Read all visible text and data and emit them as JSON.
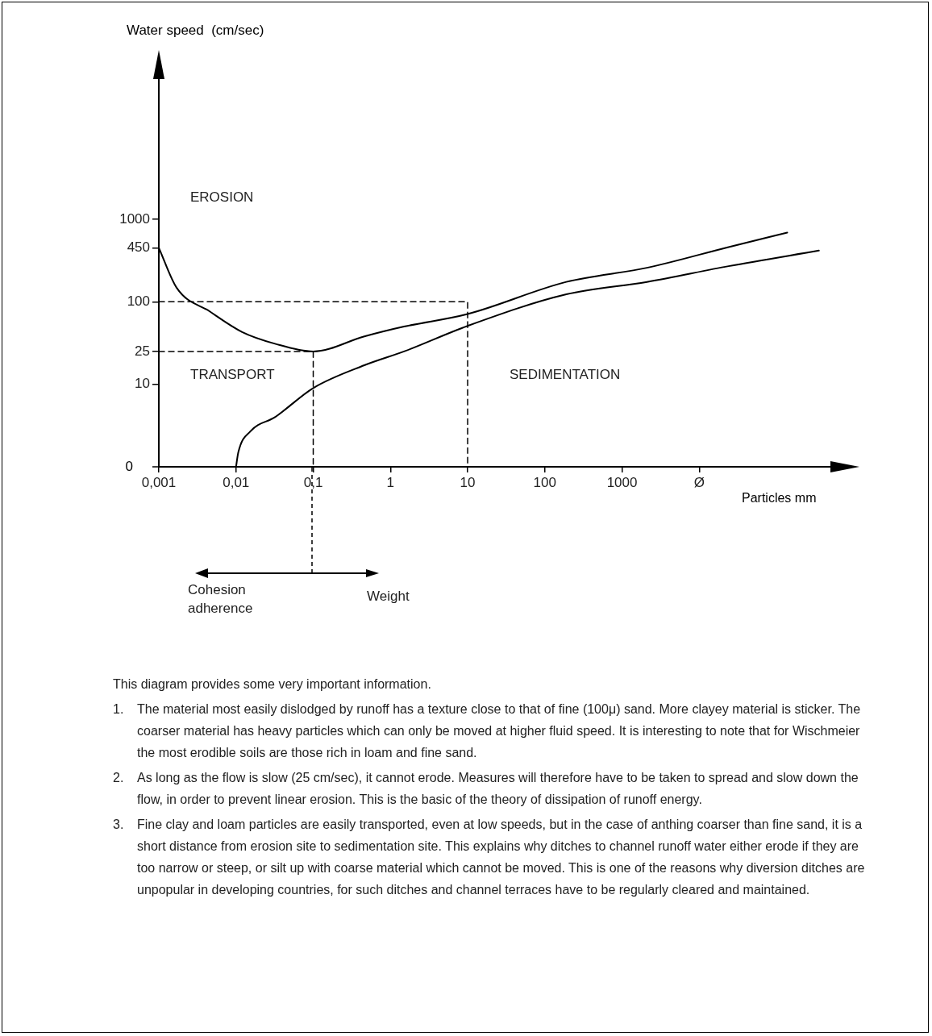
{
  "chart_data": {
    "type": "line",
    "xlabel": "Particles mm",
    "ylabel": "Water speed  (cm/sec)",
    "log": "xy",
    "grid": false,
    "legend": false,
    "marker": "none",
    "xlim": [
      0.001,
      500000
    ],
    "ylim": [
      1,
      50000
    ],
    "xticks": [
      {
        "value": 0.001,
        "label": "0,001"
      },
      {
        "value": 0.01,
        "label": "0,01"
      },
      {
        "value": 0.1,
        "label": "0,1"
      },
      {
        "value": 1,
        "label": "1"
      },
      {
        "value": 10,
        "label": "10"
      },
      {
        "value": 100,
        "label": "100"
      },
      {
        "value": 1000,
        "label": "1000"
      },
      {
        "value": 10000,
        "label": "Ø"
      }
    ],
    "yticks": [
      10,
      25,
      100,
      450,
      1000
    ],
    "series": [
      {
        "color": "#000000",
        "line_style": "solid",
        "x": [
          0.001,
          0.0017,
          0.0046,
          0.012,
          0.032,
          0.1,
          0.46,
          1.5,
          10,
          190,
          2100,
          24000,
          138000
        ],
        "values": [
          450,
          148,
          76,
          43,
          31,
          25,
          38,
          50,
          71,
          174,
          258,
          460,
          690
        ]
      },
      {
        "color": "#000000",
        "line_style": "solid",
        "x": [
          0.01,
          0.0107,
          0.0154,
          0.032,
          0.1,
          0.46,
          1.5,
          10,
          190,
          2100,
          24000,
          355000
        ],
        "values": [
          1,
          1.5,
          2.7,
          4,
          9,
          17,
          25,
          51,
          123,
          174,
          270,
          417
        ]
      },
      {
        "color": "#000000",
        "line_style": "dashed",
        "x": [
          0.001,
          10,
          10
        ],
        "values": [
          100,
          100,
          1
        ]
      },
      {
        "color": "#000000",
        "line_style": "dashed",
        "x": [
          0.001,
          0.1,
          0.1
        ],
        "values": [
          25,
          25,
          1
        ]
      }
    ],
    "annotations": [
      "EROSION",
      "TRANSPORT",
      "SEDIMENTATION",
      "Cohesion adherence",
      "Weight",
      "0",
      "This diagram provides some very important information.",
      "1.\tThe material most easily dislodged by runoff has a texture close to that of fine (100μ) sand. More clayey material is sticker. The coarser material has heavy particles which can only be moved at higher fluid speed. It is interesting to note that for Wischmeier the most erodible soils are those rich in loam and fine sand.",
      "2.\tAs long as the flow is slow (25 cm/sec), it cannot erode. Measures will therefore have to be taken to spread and slow down the flow, in order to prevent linear erosion. This is the basic of the theory of dissipation of runoff energy.",
      "3.\tFine clay and loam particles are easily transported, even at low speeds, but in the case of anthing coarser than fine sand, it is a short distance from erosion site to sedimentation site. This explains why ditches to channel runoff water either erode if they are too narrow or steep, or silt up with coarse material which cannot be moved. This is one of the reasons why diversion ditches are unpopular in developing countries, for such ditches and channel terraces have to be regularly cleared and maintained."
    ]
  }
}
